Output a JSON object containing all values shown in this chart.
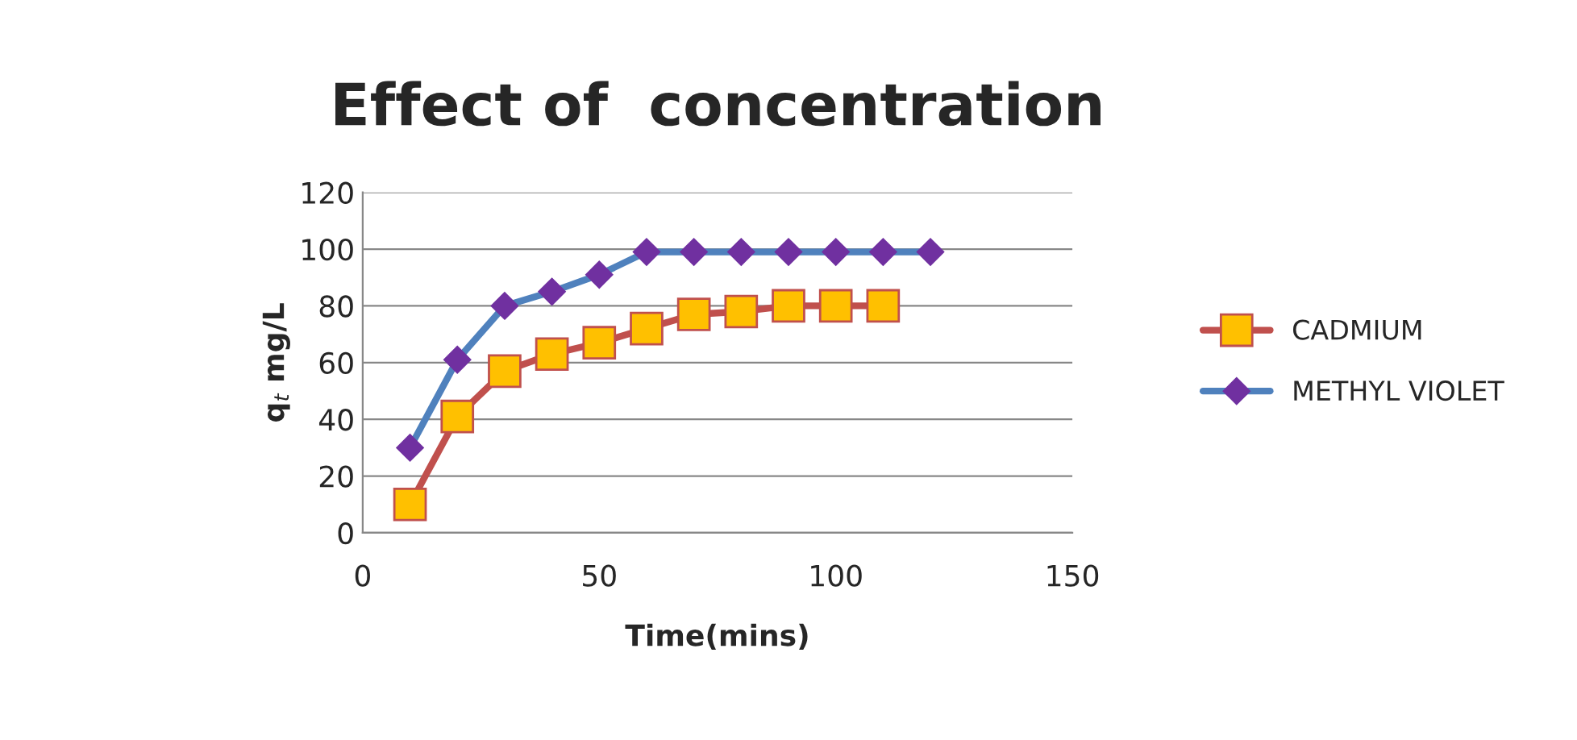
{
  "chart_data": {
    "type": "line",
    "title": "Effect of  concentration",
    "xlabel": "Time(mins)",
    "ylabel": "q$_{t}$ mg/L",
    "xlim": [
      0,
      150
    ],
    "xticks": [
      0,
      50,
      100,
      150
    ],
    "ylim": [
      0,
      120
    ],
    "yticks": [
      0,
      20,
      40,
      60,
      80,
      100,
      120
    ],
    "grid": "y",
    "legend": "right",
    "series": [
      {
        "name": "CADMIUM",
        "color": "#c0504d",
        "marker": "square",
        "x": [
          10,
          20,
          30,
          40,
          50,
          60,
          70,
          80,
          90,
          100,
          110
        ],
        "values": [
          10,
          41,
          57,
          63,
          67,
          72,
          77,
          78,
          80,
          80,
          80
        ]
      },
      {
        "name": "METHYL VIOLET",
        "color": "#4f81bd",
        "marker": "diamond",
        "x": [
          10,
          20,
          30,
          40,
          50,
          60,
          70,
          80,
          90,
          100,
          110,
          120
        ],
        "values": [
          30,
          61,
          80,
          85,
          91,
          99,
          99,
          99,
          99,
          99,
          99,
          99
        ]
      }
    ]
  }
}
